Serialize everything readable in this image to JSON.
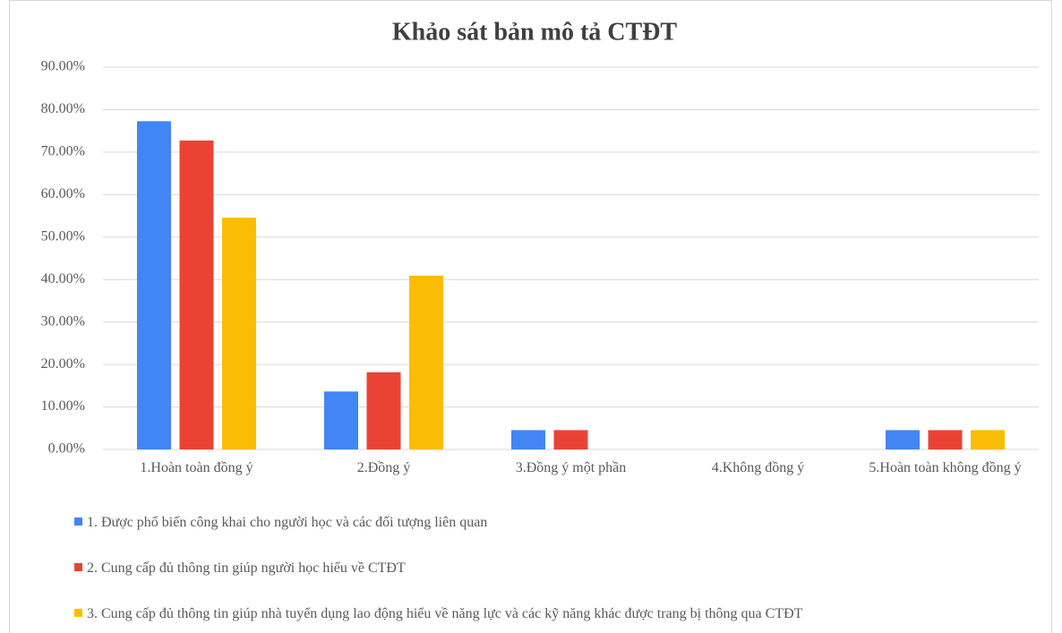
{
  "chart_data": {
    "type": "bar",
    "title": "Khảo sát bản mô tả CTĐT",
    "categories": [
      "1.Hoàn toàn đồng ý",
      "2.Đồng ý",
      "3.Đồng ý một phần",
      "4.Không đồng ý",
      "5.Hoàn toàn không đồng ý"
    ],
    "series": [
      {
        "name": "1. Được phổ biến công khai cho người học và các đối tượng liên quan",
        "color": "#4285f4",
        "values": [
          77.27,
          13.64,
          4.55,
          0,
          4.55
        ]
      },
      {
        "name": "2. Cung cấp đủ thông tin giúp người học hiểu về CTĐT",
        "color": "#ea4335",
        "values": [
          72.73,
          18.18,
          4.55,
          0,
          4.55
        ]
      },
      {
        "name": "3. Cung cấp đủ thông tin giúp nhà tuyển dụng lao động hiểu về năng lực và các kỹ năng khác được trang bị thông qua CTĐT",
        "color": "#fbbc04",
        "values": [
          54.55,
          40.91,
          0,
          0,
          4.55
        ]
      }
    ],
    "ylim": [
      0,
      90
    ],
    "yticks": [
      {
        "value": 0,
        "label": "0.00%"
      },
      {
        "value": 10,
        "label": "10.00%"
      },
      {
        "value": 20,
        "label": "20.00%"
      },
      {
        "value": 30,
        "label": "30.00%"
      },
      {
        "value": 40,
        "label": "40.00%"
      },
      {
        "value": 50,
        "label": "50.00%"
      },
      {
        "value": 60,
        "label": "60.00%"
      },
      {
        "value": 70,
        "label": "70.00%"
      },
      {
        "value": 80,
        "label": "80.00%"
      },
      {
        "value": 90,
        "label": "90.00%"
      }
    ],
    "grid": true,
    "legend": "bottom"
  }
}
